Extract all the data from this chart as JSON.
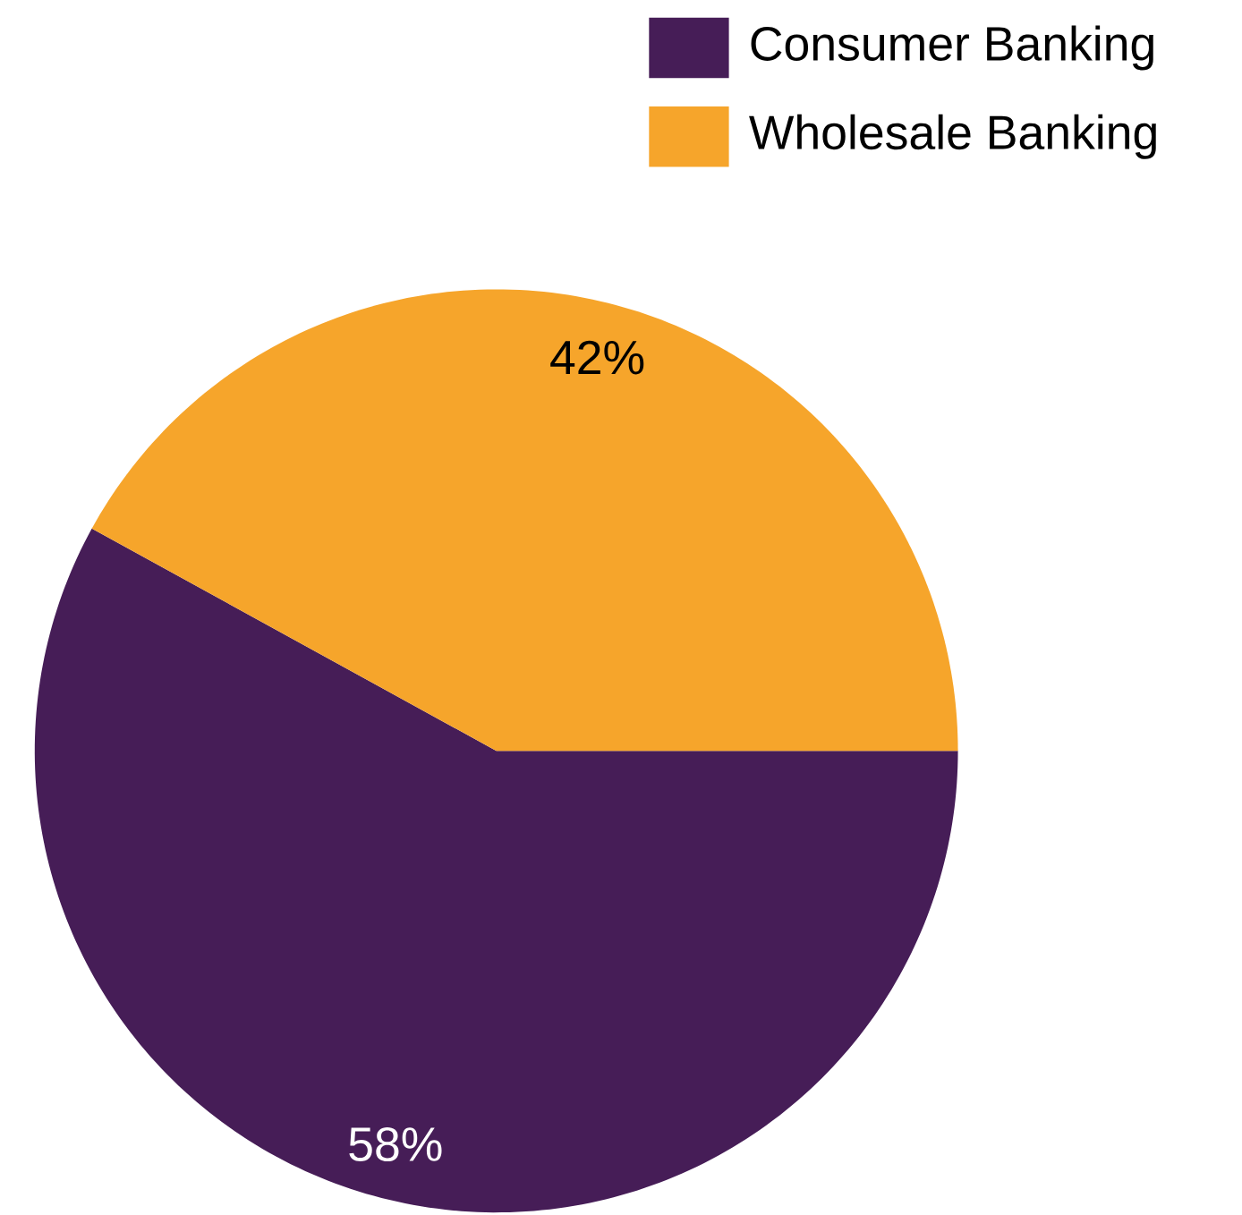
{
  "chart_data": {
    "type": "pie",
    "categories": [
      "Consumer Banking",
      "Wholesale Banking"
    ],
    "values": [
      58,
      42
    ],
    "colors": [
      "#461d57",
      "#f6a52b"
    ],
    "value_labels": [
      "58%",
      "42%"
    ],
    "legend": "top right"
  }
}
